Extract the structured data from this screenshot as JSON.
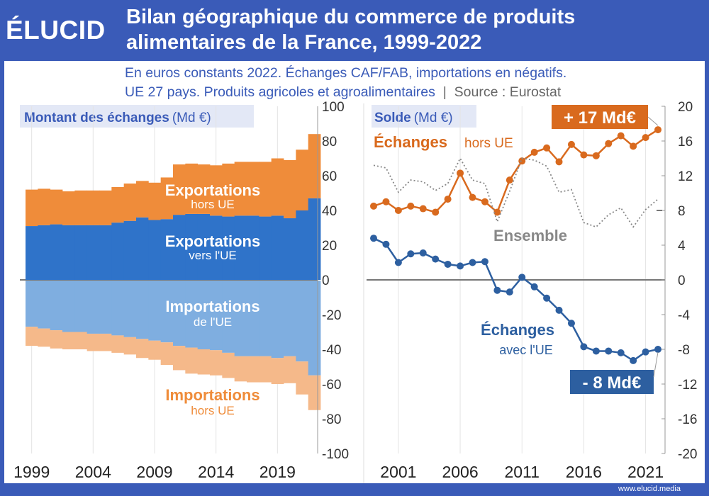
{
  "header": {
    "logo": "ÉLUCID",
    "title_line1": "Bilan géographique du commerce de produits",
    "title_line2": "alimentaires de la France, 1999-2022",
    "subtitle_line1": "En euros constants 2022. Échanges CAF/FAB, importations en négatifs.",
    "subtitle_line2": "UE 27 pays. Produits agricoles et agroalimentaires",
    "subtitle_sep": "|",
    "subtitle_source": "Source : Eurostat"
  },
  "footer": {
    "url": "www.elucid.media"
  },
  "colors": {
    "brand": "#3a5bb8",
    "exports_eu": "#2f73c9",
    "exports_non_eu": "#ef8c3a",
    "imports_eu": "#7faee0",
    "imports_non_eu": "#f5b98a",
    "solde_non_eu": "#d96a1e",
    "solde_eu": "#2d5fa0",
    "solde_total": "#888888"
  },
  "chart_data": [
    {
      "type": "bar",
      "stacked": true,
      "title": "Montant des échanges",
      "title_unit": "(Md €)",
      "x": [
        1999,
        2000,
        2001,
        2002,
        2003,
        2004,
        2005,
        2006,
        2007,
        2008,
        2009,
        2010,
        2011,
        2012,
        2013,
        2014,
        2015,
        2016,
        2017,
        2018,
        2019,
        2020,
        2021,
        2022
      ],
      "xticks": [
        "1999",
        "2004",
        "2009",
        "2014",
        "2019"
      ],
      "yticks": [
        "100",
        "80",
        "60",
        "40",
        "20",
        "0",
        "-20",
        "-40",
        "-60",
        "-80",
        "-100"
      ],
      "ylim": [
        -100,
        100
      ],
      "series": [
        {
          "name": "Exportations vers l'UE",
          "label_main": "Exportations",
          "label_sub": "vers l'UE",
          "values": [
            31,
            31.5,
            32,
            31.5,
            31.5,
            31.5,
            31.5,
            33,
            34,
            36,
            34.5,
            35,
            37.5,
            38,
            38,
            37,
            36.5,
            37,
            37,
            36.5,
            37,
            35.5,
            40,
            47
          ]
        },
        {
          "name": "Exportations hors UE",
          "label_main": "Exportations",
          "label_sub": "hors UE",
          "values": [
            21,
            21,
            20,
            19.5,
            20,
            20,
            20,
            20.5,
            21.5,
            21,
            21.5,
            24,
            29,
            29,
            28.5,
            29,
            30.5,
            31,
            31,
            31.5,
            33,
            33.5,
            35,
            37
          ]
        },
        {
          "name": "Importations de l'UE",
          "label_main": "Importations",
          "label_sub": "de l'UE",
          "values": [
            -27,
            -28,
            -29,
            -30,
            -30,
            -31,
            -31,
            -32,
            -33,
            -34,
            -35,
            -36,
            -38,
            -39,
            -40,
            -40.5,
            -42,
            -44,
            -44,
            -44,
            -45,
            -44,
            -47,
            -55
          ]
        },
        {
          "name": "Importations hors UE",
          "label_main": "Importations",
          "label_sub": "hors UE",
          "values": [
            -11,
            -10.5,
            -10.5,
            -10,
            -10,
            -10,
            -10,
            -10,
            -10,
            -11,
            -11,
            -13,
            -14,
            -15,
            -14.5,
            -14.5,
            -14.5,
            -14.5,
            -15,
            -15,
            -15,
            -15.5,
            -19,
            -20
          ]
        }
      ]
    },
    {
      "type": "line",
      "title": "Solde",
      "title_unit": "(Md €)",
      "x": [
        1999,
        2000,
        2001,
        2002,
        2003,
        2004,
        2005,
        2006,
        2007,
        2008,
        2009,
        2010,
        2011,
        2012,
        2013,
        2014,
        2015,
        2016,
        2017,
        2018,
        2019,
        2020,
        2021,
        2022
      ],
      "xticks": [
        "2001",
        "2006",
        "2011",
        "2016",
        "2021"
      ],
      "yticks": [
        "20",
        "16",
        "12",
        "8",
        "4",
        "0",
        "-4",
        "-8",
        "-12",
        "-16",
        "-20"
      ],
      "ylim": [
        -20,
        20
      ],
      "series": [
        {
          "name": "Échanges hors UE",
          "label_main": "Échanges",
          "label_sub": "hors UE",
          "end_label": "+ 17 Md€",
          "values": [
            8.5,
            9,
            8,
            8.5,
            8.2,
            7.8,
            9.3,
            12.3,
            9.5,
            9,
            7.8,
            11.5,
            13.7,
            14.7,
            15.2,
            13.6,
            15.6,
            14.4,
            14.3,
            15.7,
            16.6,
            15.4,
            16.4,
            17.3
          ]
        },
        {
          "name": "Échanges avec l'UE",
          "label_main": "Échanges",
          "label_sub": "avec l'UE",
          "end_label": "- 8 Md€",
          "values": [
            4.8,
            4.1,
            2,
            3,
            3.1,
            2.4,
            1.8,
            1.6,
            2,
            2.1,
            -1.2,
            -1.4,
            0.3,
            -0.8,
            -2.1,
            -3.5,
            -5,
            -7.7,
            -8.2,
            -8.2,
            -8.4,
            -9.3,
            -8.3,
            -8
          ]
        },
        {
          "name": "Ensemble",
          "label_main": "Ensemble",
          "values": [
            13.2,
            12.9,
            10.1,
            11.5,
            11.3,
            10.3,
            11.1,
            14,
            11.5,
            11.1,
            6.7,
            10.2,
            14,
            13.8,
            13.1,
            10.1,
            10.4,
            6.6,
            6.1,
            7.5,
            8.3,
            6.1,
            8.1,
            9.3
          ]
        }
      ]
    }
  ]
}
